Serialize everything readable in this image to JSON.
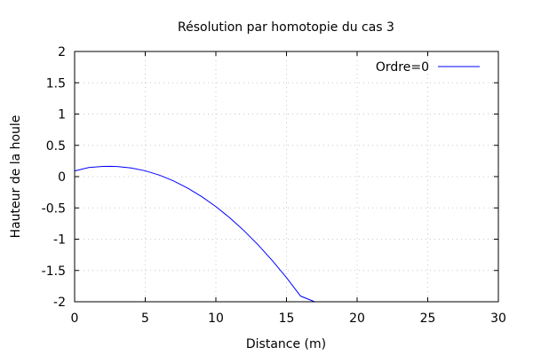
{
  "chart_data": {
    "type": "line",
    "title": "Résolution par homotopie du cas 3",
    "xlabel": "Distance (m)",
    "ylabel": "Hauteur de la houle",
    "xlim": [
      0,
      30
    ],
    "ylim": [
      -2,
      2
    ],
    "xticks": [
      0,
      5,
      10,
      15,
      20,
      25,
      30
    ],
    "yticks": [
      2,
      1.5,
      1,
      0.5,
      0,
      -0.5,
      -1,
      -1.5,
      -2
    ],
    "xtick_labels": [
      "0",
      "5",
      "10",
      "15",
      "20",
      "25",
      "30"
    ],
    "ytick_labels": [
      "2",
      "1.5",
      "1",
      "0.5",
      "0",
      "-0.5",
      "-1",
      "-1.5",
      "-2"
    ],
    "grid": true,
    "legend": "top-right",
    "series": [
      {
        "name": "Ordre=0",
        "color": "#0000ff",
        "x": [
          0,
          1,
          2,
          2.5,
          3,
          4,
          5,
          6,
          7,
          8,
          9,
          10,
          11,
          12,
          13,
          14,
          15,
          16,
          17,
          17.4
        ],
        "y": [
          0.09,
          0.145,
          0.163,
          0.165,
          0.162,
          0.139,
          0.093,
          0.024,
          -0.068,
          -0.183,
          -0.32,
          -0.479,
          -0.661,
          -0.866,
          -1.093,
          -1.343,
          -1.615,
          -1.91,
          -2.0,
          -2.0
        ]
      }
    ]
  }
}
